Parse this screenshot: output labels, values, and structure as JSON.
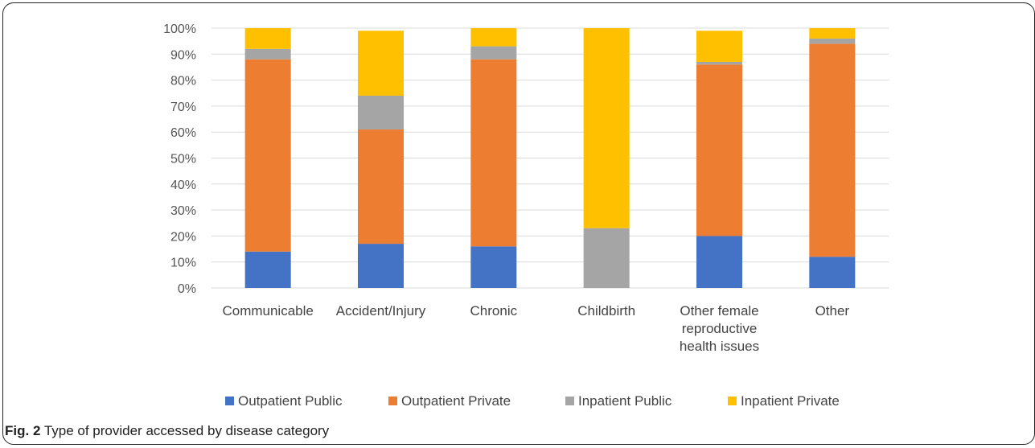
{
  "chart_data": {
    "type": "bar",
    "stacked": true,
    "categories": [
      [
        "Communicable"
      ],
      [
        "Accident/Injury"
      ],
      [
        "Chronic"
      ],
      [
        "Childbirth"
      ],
      [
        "Other female",
        "reproductive",
        "health issues"
      ],
      [
        "Other"
      ]
    ],
    "series": [
      {
        "name": "Outpatient Public",
        "color": "#4472C4",
        "values": [
          14,
          17,
          16,
          0,
          20,
          12
        ]
      },
      {
        "name": "Outpatient Private",
        "color": "#ED7D31",
        "values": [
          74,
          44,
          72,
          0,
          66,
          82
        ]
      },
      {
        "name": "Inpatient Public",
        "color": "#A5A5A5",
        "values": [
          4,
          13,
          5,
          23,
          1,
          2
        ]
      },
      {
        "name": "Inpatient Private",
        "color": "#FFC000",
        "values": [
          8,
          25,
          7,
          77,
          12,
          4
        ]
      }
    ],
    "yticks": [
      "0%",
      "10%",
      "20%",
      "30%",
      "40%",
      "50%",
      "60%",
      "70%",
      "80%",
      "90%",
      "100%"
    ],
    "ylim": [
      0,
      100
    ],
    "grid": true,
    "legend_position": "bottom"
  },
  "caption": {
    "label": "Fig. 2",
    "text": " Type of provider accessed by disease category"
  }
}
